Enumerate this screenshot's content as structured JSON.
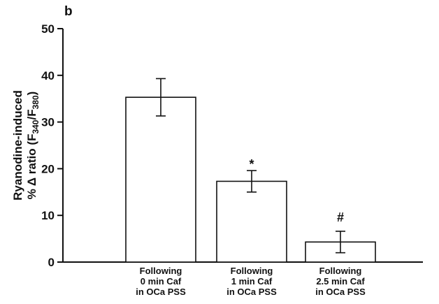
{
  "panel_label": "b",
  "chart_data": {
    "type": "bar",
    "categories": [
      [
        "Following",
        "0 min Caf",
        "in OCa PSS"
      ],
      [
        "Following",
        "1 min Caf",
        "in OCa PSS"
      ],
      [
        "Following",
        "2.5 min Caf",
        "in OCa PSS"
      ]
    ],
    "values": [
      35.3,
      17.3,
      4.3
    ],
    "error_bars": [
      4.0,
      2.3,
      2.3
    ],
    "annotations": [
      "",
      "*",
      "#"
    ],
    "ylabel_line1": "Ryanodine-induced",
    "ylabel_line2_prefix": "% Δ ratio (F",
    "ylabel_sub1": "340",
    "ylabel_mid": "/F",
    "ylabel_sub2": "380",
    "ylabel_suffix": ")",
    "yticks": [
      "0",
      "10",
      "20",
      "30",
      "40",
      "50"
    ],
    "ylim": [
      0,
      50
    ],
    "grid": false,
    "bar_fill": "#ffffff",
    "stroke_color": "#111111"
  }
}
